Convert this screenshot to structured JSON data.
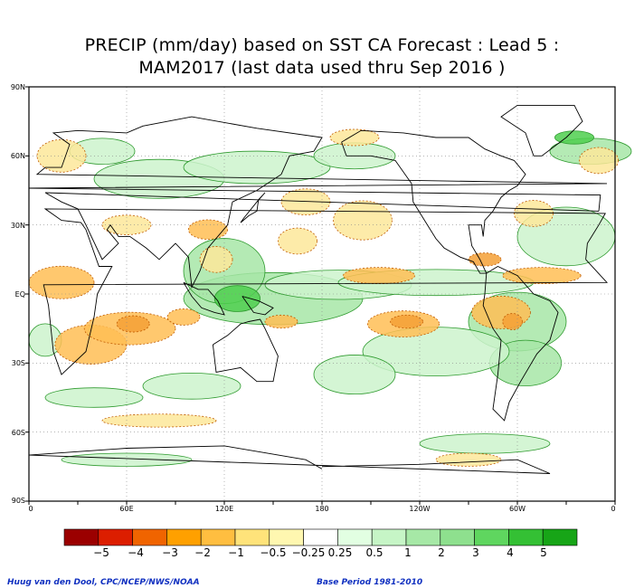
{
  "title": {
    "line1": "PRECIP (mm/day) based on SST CA Forecast : Lead 5 :",
    "line2": "MAM2017 (last data used thru Sep 2016 )"
  },
  "lat_labels": [
    "90N",
    "60N",
    "30N",
    "EQ",
    "30S",
    "60S",
    "90S"
  ],
  "lon_labels": [
    "0",
    "60E",
    "120E",
    "180",
    "120W",
    "60W",
    "0"
  ],
  "colorbar": {
    "colors": [
      "#9b0000",
      "#dc1e00",
      "#f06400",
      "#ffa000",
      "#ffbe40",
      "#ffe37a",
      "#fff7b0",
      "#ffffff",
      "#e2ffe2",
      "#c6f5c6",
      "#a6e8a6",
      "#8ee08e",
      "#5fd65f",
      "#34c034",
      "#17a517"
    ],
    "labels": [
      "−5",
      "−4",
      "−3",
      "−2",
      "−1",
      "−0.5",
      "−0.25",
      "0.25",
      "0.5",
      "1",
      "2",
      "3",
      "4",
      "5"
    ]
  },
  "colors": {
    "dry": "#ffbe55",
    "dry_light": "#fde79a",
    "dry_strong": "#f4a036",
    "wet": "#a7e6a7",
    "wet_light": "#ccf3cc",
    "wet_strong": "#4fcf4f"
  },
  "credits": {
    "left": "Huug van den Dool, CPC/NCEP/NWS/NOAA",
    "right": "Base Period 1981-2010"
  }
}
